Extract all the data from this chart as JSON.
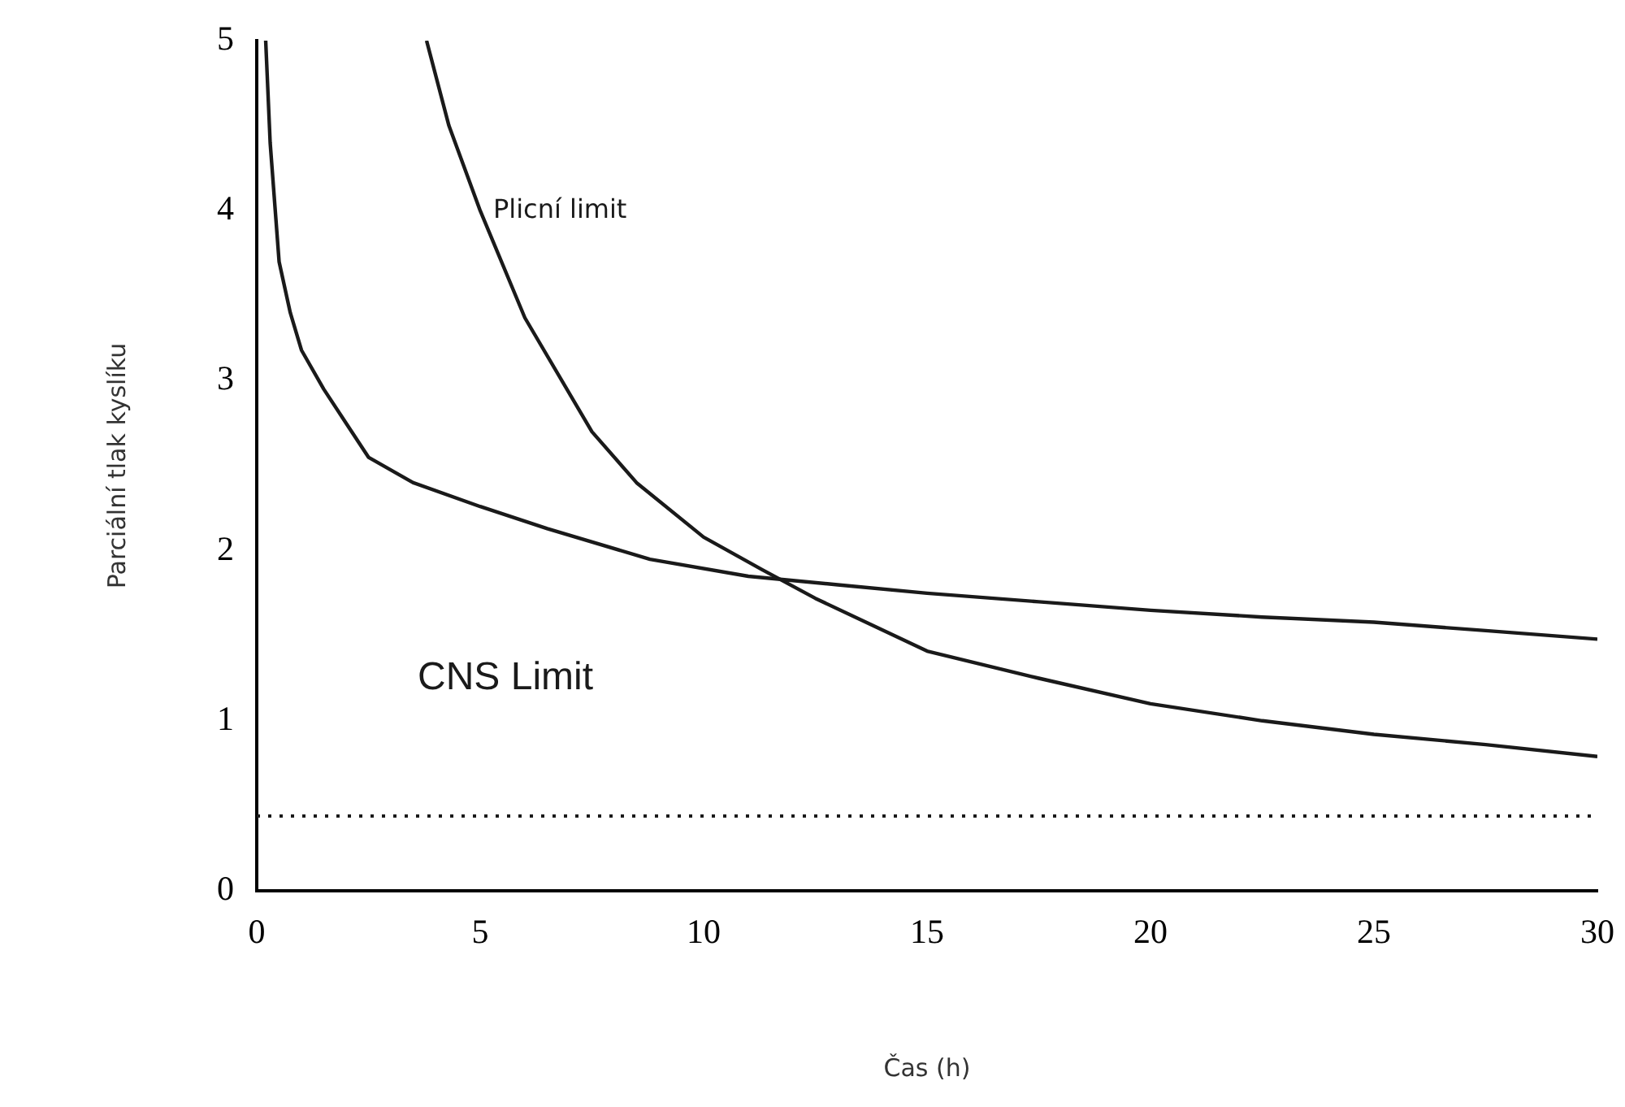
{
  "chart_data": {
    "type": "line",
    "xlabel": "Čas (h)",
    "ylabel": "Parciální tlak kyslíku",
    "xlim": [
      0,
      30
    ],
    "ylim": [
      0,
      5
    ],
    "xticks": [
      0,
      5,
      10,
      15,
      20,
      25,
      30
    ],
    "yticks": [
      0,
      1,
      2,
      3,
      4,
      5
    ],
    "grid": false,
    "legend": false,
    "marker": "none",
    "line_style": "solid",
    "series": [
      {
        "name": "CNS Limit",
        "color": "#1a1a1a",
        "x": [
          0.2,
          0.3,
          0.5,
          0.75,
          1,
          1.5,
          2,
          2.5,
          3.5,
          5,
          6.5,
          8.8,
          11,
          13,
          15,
          17.5,
          20,
          22.5,
          25,
          27.5,
          30
        ],
        "values": [
          5,
          4.4,
          3.7,
          3.4,
          3.18,
          2.95,
          2.75,
          2.55,
          2.4,
          2.26,
          2.13,
          1.95,
          1.85,
          1.8,
          1.75,
          1.7,
          1.65,
          1.61,
          1.58,
          1.53,
          1.48
        ]
      },
      {
        "name": "Plicní limit",
        "color": "#1a1a1a",
        "x": [
          3.8,
          4.3,
          5,
          6,
          7.5,
          8.5,
          10,
          11.3,
          12.5,
          15,
          17.5,
          20,
          22.5,
          25,
          27.5,
          30
        ],
        "values": [
          5,
          4.5,
          4.0,
          3.37,
          2.7,
          2.4,
          2.08,
          1.89,
          1.72,
          1.41,
          1.25,
          1.1,
          1.0,
          0.92,
          0.86,
          0.79
        ]
      }
    ],
    "ref_lines": [
      {
        "axis": "y",
        "value": 0.44,
        "color": "#1a1a1a",
        "line_style": "dotted"
      }
    ]
  }
}
